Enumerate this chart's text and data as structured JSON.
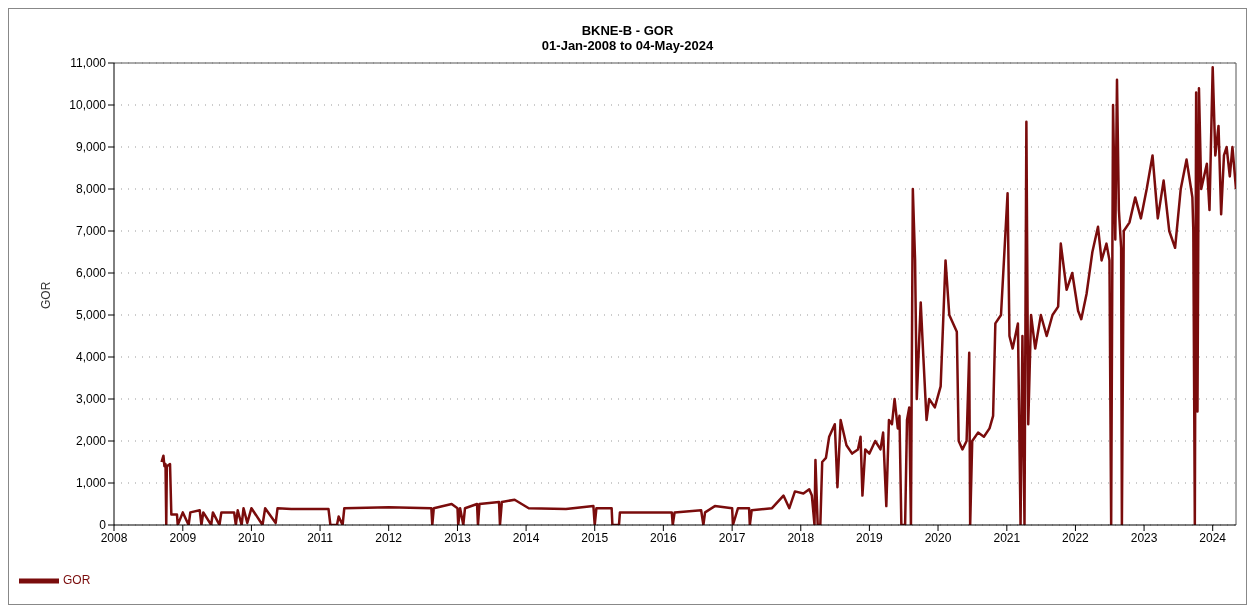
{
  "chart_data": {
    "type": "line",
    "title": "BKNE-B - GOR",
    "subtitle": "01-Jan-2008 to 04-May-2024",
    "ylabel": "GOR",
    "xlim": [
      "2008-01-01",
      "2024-05-04"
    ],
    "xticks": [
      "2008",
      "2009",
      "2010",
      "2011",
      "2012",
      "2013",
      "2014",
      "2015",
      "2016",
      "2017",
      "2018",
      "2019",
      "2020",
      "2021",
      "2022",
      "2023",
      "2024"
    ],
    "ylim": [
      0,
      11000
    ],
    "yticks": [
      0,
      {
        "value": 1000,
        "label": "1,000"
      },
      {
        "value": 2000,
        "label": "2,000"
      },
      {
        "value": 3000,
        "label": "3,000"
      },
      {
        "value": 4000,
        "label": "4,000"
      },
      {
        "value": 5000,
        "label": "5,000"
      },
      {
        "value": 6000,
        "label": "6,000"
      },
      {
        "value": 7000,
        "label": "7,000"
      },
      {
        "value": 8000,
        "label": "8,000"
      },
      {
        "value": 9000,
        "label": "9,000"
      },
      {
        "value": 10000,
        "label": "10,000"
      },
      {
        "value": 11000,
        "label": "11,000"
      }
    ],
    "grid": "y",
    "legend": "bottom left",
    "marker": "none",
    "line_style": "solid",
    "x": [
      "2008-09-10",
      "2008-09-20",
      "2008-09-25",
      "2008-10-01",
      "2008-10-05",
      "2008-10-08",
      "2008-10-25",
      "2008-11-01",
      "2008-12-01",
      "2008-12-05",
      "2009-01-01",
      "2009-02-01",
      "2009-02-10",
      "2009-04-01",
      "2009-04-10",
      "2009-04-20",
      "2009-06-01",
      "2009-06-10",
      "2009-07-15",
      "2009-07-25",
      "2009-10-01",
      "2009-10-10",
      "2009-10-20",
      "2009-11-10",
      "2009-11-20",
      "2009-12-10",
      "2010-01-01",
      "2010-03-01",
      "2010-03-15",
      "2010-05-10",
      "2010-05-20",
      "2010-08-01",
      "2011-02-15",
      "2011-02-25",
      "2011-04-01",
      "2011-04-10",
      "2011-05-01",
      "2011-05-10",
      "2012-01-01",
      "2012-08-15",
      "2012-08-20",
      "2012-08-28",
      "2012-12-01",
      "2013-01-01",
      "2013-01-05",
      "2013-01-15",
      "2013-02-01",
      "2013-02-10",
      "2013-04-15",
      "2013-04-20",
      "2013-04-28",
      "2013-08-10",
      "2013-08-15",
      "2013-08-25",
      "2013-11-01",
      "2014-01-15",
      "2014-08-01",
      "2014-12-25",
      "2015-01-01",
      "2015-01-10",
      "2015-04-01",
      "2015-04-05",
      "2015-05-10",
      "2015-05-15",
      "2015-12-01",
      "2016-02-15",
      "2016-02-20",
      "2016-03-01",
      "2016-07-20",
      "2016-08-01",
      "2016-08-10",
      "2016-10-01",
      "2017-01-01",
      "2017-01-05",
      "2017-02-01",
      "2017-04-01",
      "2017-04-05",
      "2017-04-15",
      "2017-08-01",
      "2017-10-01",
      "2017-11-01",
      "2017-12-01",
      "2018-01-15",
      "2018-02-15",
      "2018-03-01",
      "2018-03-15",
      "2018-03-20",
      "2018-04-01",
      "2018-04-15",
      "2018-04-25",
      "2018-05-15",
      "2018-06-01",
      "2018-07-01",
      "2018-07-15",
      "2018-08-01",
      "2018-09-01",
      "2018-10-01",
      "2018-11-01",
      "2018-11-15",
      "2018-11-25",
      "2018-12-10",
      "2019-01-01",
      "2019-02-01",
      "2019-03-01",
      "2019-03-15",
      "2019-04-01",
      "2019-04-15",
      "2019-05-01",
      "2019-05-15",
      "2019-06-01",
      "2019-06-10",
      "2019-06-20",
      "2019-07-10",
      "2019-07-20",
      "2019-08-01",
      "2019-08-10",
      "2019-08-20",
      "2019-09-01",
      "2019-09-10",
      "2019-10-01",
      "2019-10-15",
      "2019-11-01",
      "2019-11-15",
      "2019-12-15",
      "2020-01-15",
      "2020-02-10",
      "2020-03-01",
      "2020-04-10",
      "2020-04-20",
      "2020-05-10",
      "2020-06-01",
      "2020-06-15",
      "2020-06-20",
      "2020-07-01",
      "2020-08-01",
      "2020-09-01",
      "2020-10-01",
      "2020-10-20",
      "2020-11-01",
      "2020-12-01",
      "2021-01-05",
      "2021-01-15",
      "2021-02-01",
      "2021-03-01",
      "2021-03-15",
      "2021-03-25",
      "2021-04-05",
      "2021-04-15",
      "2021-04-25",
      "2021-05-10",
      "2021-06-01",
      "2021-07-01",
      "2021-08-01",
      "2021-09-01",
      "2021-10-01",
      "2021-10-15",
      "2021-11-15",
      "2021-12-15",
      "2022-01-15",
      "2022-02-01",
      "2022-03-01",
      "2022-04-01",
      "2022-05-01",
      "2022-05-20",
      "2022-06-15",
      "2022-07-01",
      "2022-07-10",
      "2022-07-20",
      "2022-08-01",
      "2022-08-10",
      "2022-08-20",
      "2022-09-01",
      "2022-09-05",
      "2022-09-15",
      "2022-10-15",
      "2022-11-15",
      "2022-12-15",
      "2023-01-15",
      "2023-02-15",
      "2023-03-15",
      "2023-04-15",
      "2023-05-15",
      "2023-06-15",
      "2023-07-15",
      "2023-08-15",
      "2023-09-15",
      "2023-09-20",
      "2023-09-28",
      "2023-10-05",
      "2023-10-12",
      "2023-10-20",
      "2023-11-01",
      "2023-12-01",
      "2023-12-15",
      "2024-01-01",
      "2024-01-15",
      "2024-02-01",
      "2024-02-15",
      "2024-03-01",
      "2024-03-15",
      "2024-04-01",
      "2024-04-15",
      "2024-05-04"
    ],
    "series": [
      {
        "name": "GOR",
        "color": "#7a0c0c",
        "values": [
          1500,
          1650,
          1400,
          1450,
          0,
          1400,
          1450,
          250,
          250,
          0,
          300,
          0,
          300,
          350,
          0,
          300,
          0,
          300,
          0,
          300,
          300,
          0,
          350,
          0,
          400,
          50,
          400,
          0,
          400,
          50,
          400,
          380,
          380,
          0,
          0,
          200,
          0,
          400,
          420,
          400,
          0,
          400,
          500,
          400,
          0,
          400,
          0,
          400,
          500,
          0,
          500,
          550,
          0,
          550,
          600,
          400,
          380,
          450,
          0,
          400,
          400,
          0,
          0,
          300,
          300,
          300,
          0,
          300,
          350,
          0,
          300,
          450,
          400,
          0,
          400,
          400,
          0,
          350,
          400,
          700,
          400,
          800,
          750,
          850,
          700,
          0,
          1550,
          0,
          0,
          1500,
          1600,
          2100,
          2400,
          900,
          2500,
          1900,
          1700,
          1800,
          2100,
          700,
          1800,
          1700,
          2000,
          1800,
          2200,
          450,
          2500,
          2400,
          3000,
          2300,
          2600,
          0,
          0,
          2500,
          2800,
          0,
          8000,
          6300,
          3000,
          5300,
          4000,
          2500,
          3000,
          2800,
          3300,
          6300,
          5000,
          4600,
          2000,
          1800,
          2000,
          4100,
          0,
          2000,
          2200,
          2100,
          2300,
          2600,
          4800,
          5000,
          7900,
          4500,
          4200,
          4800,
          0,
          4500,
          0,
          9600,
          2400,
          5000,
          4200,
          5000,
          4500,
          5000,
          5200,
          6700,
          5600,
          6000,
          5100,
          4900,
          5500,
          6500,
          7100,
          6300,
          6700,
          6300,
          0,
          10000,
          6800,
          10600,
          7500,
          6600,
          0,
          7000,
          7200,
          7800,
          7300,
          8000,
          8800,
          7300,
          8200,
          7000,
          6600,
          8000,
          8700,
          7800,
          7000,
          0,
          10300,
          2700,
          10400,
          8000,
          8600,
          7500,
          10900,
          8800,
          9500,
          7400,
          8800,
          9000,
          8300,
          9000,
          8000
        ]
      }
    ]
  }
}
